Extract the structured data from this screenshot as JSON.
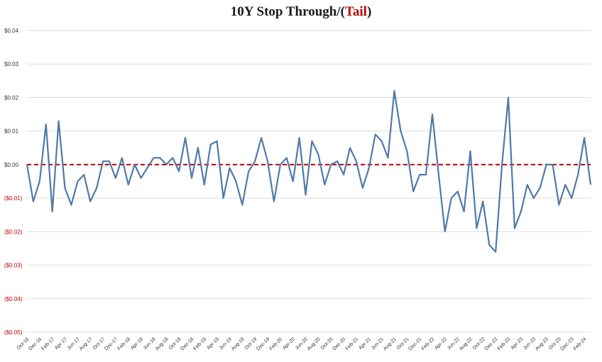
{
  "chart_data": {
    "type": "line",
    "title_main": "10Y Stop Through/(",
    "title_tail": "Tail",
    "title_close": ")",
    "ylim": [
      -0.05,
      0.04
    ],
    "y_ticks": [
      {
        "value": 0.04,
        "label": "$0.04"
      },
      {
        "value": 0.03,
        "label": "$0.03"
      },
      {
        "value": 0.02,
        "label": "$0.02"
      },
      {
        "value": 0.01,
        "label": "$0.01"
      },
      {
        "value": 0.0,
        "label": "$0.00"
      },
      {
        "value": -0.01,
        "label": "($0.01)"
      },
      {
        "value": -0.02,
        "label": "($0.02)"
      },
      {
        "value": -0.03,
        "label": "($0.03)"
      },
      {
        "value": -0.04,
        "label": "($0.04)"
      },
      {
        "value": -0.05,
        "label": "($0.05)"
      }
    ],
    "x_ticks": [
      {
        "index": 0,
        "label": "Oct-16"
      },
      {
        "index": 2,
        "label": "Dec-16"
      },
      {
        "index": 4,
        "label": "Feb-17"
      },
      {
        "index": 6,
        "label": "Apr-17"
      },
      {
        "index": 8,
        "label": "Jun-17"
      },
      {
        "index": 10,
        "label": "Aug-17"
      },
      {
        "index": 12,
        "label": "Oct-17"
      },
      {
        "index": 14,
        "label": "Dec-17"
      },
      {
        "index": 16,
        "label": "Feb-18"
      },
      {
        "index": 18,
        "label": "Apr-18"
      },
      {
        "index": 20,
        "label": "Jun-18"
      },
      {
        "index": 22,
        "label": "Aug-18"
      },
      {
        "index": 24,
        "label": "Oct-18"
      },
      {
        "index": 26,
        "label": "Dec-18"
      },
      {
        "index": 28,
        "label": "Feb-19"
      },
      {
        "index": 30,
        "label": "Apr-19"
      },
      {
        "index": 32,
        "label": "Jun-19"
      },
      {
        "index": 34,
        "label": "Aug-19"
      },
      {
        "index": 36,
        "label": "Oct-19"
      },
      {
        "index": 38,
        "label": "Dec-19"
      },
      {
        "index": 40,
        "label": "Feb-20"
      },
      {
        "index": 42,
        "label": "Apr-20"
      },
      {
        "index": 44,
        "label": "Jun-20"
      },
      {
        "index": 46,
        "label": "Aug-20"
      },
      {
        "index": 48,
        "label": "Oct-20"
      },
      {
        "index": 50,
        "label": "Dec-20"
      },
      {
        "index": 52,
        "label": "Feb-21"
      },
      {
        "index": 54,
        "label": "Apr-21"
      },
      {
        "index": 56,
        "label": "Jun-21"
      },
      {
        "index": 58,
        "label": "Aug-21"
      },
      {
        "index": 60,
        "label": "Oct-21"
      },
      {
        "index": 62,
        "label": "Dec-21"
      },
      {
        "index": 64,
        "label": "Feb-22"
      },
      {
        "index": 66,
        "label": "Apr-22"
      },
      {
        "index": 68,
        "label": "Jun-22"
      },
      {
        "index": 70,
        "label": "Aug-22"
      },
      {
        "index": 72,
        "label": "Oct-22"
      },
      {
        "index": 74,
        "label": "Dec-22"
      },
      {
        "index": 76,
        "label": "Feb-23"
      },
      {
        "index": 78,
        "label": "Apr-23"
      },
      {
        "index": 80,
        "label": "Jun-23"
      },
      {
        "index": 82,
        "label": "Aug-23"
      },
      {
        "index": 84,
        "label": "Oct-23"
      },
      {
        "index": 86,
        "label": "Dec-23"
      },
      {
        "index": 88,
        "label": "Feb-24"
      }
    ],
    "series": [
      {
        "color": "#4f7aa8",
        "values": [
          0.0,
          -0.011,
          -0.005,
          0.012,
          -0.014,
          0.013,
          -0.007,
          -0.012,
          -0.005,
          -0.003,
          -0.011,
          -0.007,
          0.001,
          0.001,
          -0.004,
          0.002,
          -0.006,
          0.0,
          -0.004,
          -0.001,
          0.002,
          0.002,
          0.0,
          0.002,
          -0.002,
          0.008,
          -0.004,
          0.005,
          -0.006,
          0.006,
          0.007,
          -0.01,
          -0.001,
          -0.005,
          -0.012,
          -0.002,
          0.001,
          0.008,
          0.001,
          -0.011,
          0.0,
          0.002,
          -0.005,
          0.008,
          -0.009,
          0.007,
          0.003,
          -0.006,
          0.0,
          0.001,
          -0.003,
          0.005,
          0.001,
          -0.007,
          -0.001,
          0.009,
          0.007,
          0.002,
          0.022,
          0.01,
          0.004,
          -0.008,
          -0.003,
          -0.003,
          0.015,
          -0.003,
          -0.02,
          -0.01,
          -0.008,
          -0.014,
          0.004,
          -0.019,
          -0.011,
          -0.024,
          -0.026,
          0.0,
          0.02,
          -0.019,
          -0.014,
          -0.006,
          -0.01,
          -0.007,
          0.0,
          0.0,
          -0.012,
          -0.006,
          -0.01,
          -0.003,
          0.008,
          -0.006
        ],
        "line_width": 2.2
      },
      {
        "type": "reference-line",
        "color": "#c00000",
        "value": 0.0,
        "dashed": true
      }
    ],
    "grid": true,
    "xlabel": "",
    "ylabel": ""
  }
}
